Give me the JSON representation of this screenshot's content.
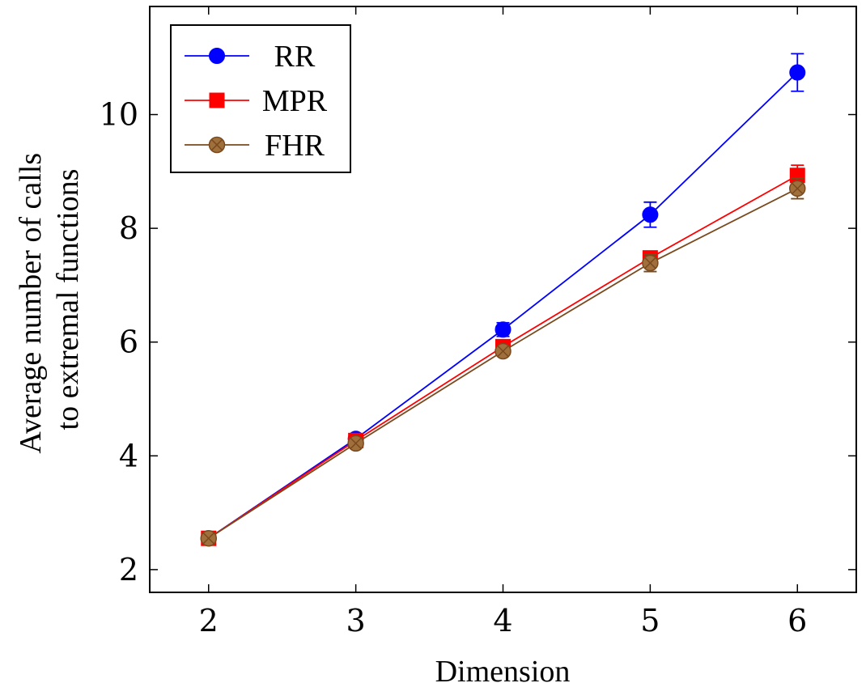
{
  "chart_data": {
    "type": "line",
    "x": [
      2,
      3,
      4,
      5,
      6
    ],
    "xlabel": "Dimension",
    "ylabel": [
      "Average number of calls",
      "to extremal functions"
    ],
    "xlim": [
      1.6,
      6.4
    ],
    "ylim": [
      1.6,
      11.9
    ],
    "xticks": [
      2,
      3,
      4,
      5,
      6
    ],
    "yticks": [
      2,
      4,
      6,
      8,
      10
    ],
    "grid": false,
    "legend_position": "top-left",
    "series": [
      {
        "name": "RR",
        "color": "#0000ff",
        "marker": "circle",
        "values": [
          2.55,
          4.3,
          6.22,
          8.24,
          10.74
        ],
        "errors": [
          0.03,
          0.04,
          0.12,
          0.22,
          0.33
        ]
      },
      {
        "name": "MPR",
        "color": "#ff0000",
        "marker": "square",
        "values": [
          2.55,
          4.27,
          5.92,
          7.48,
          8.93
        ],
        "errors": [
          0.03,
          0.04,
          0.07,
          0.1,
          0.18
        ]
      },
      {
        "name": "FHR",
        "color": "#7a4a1e",
        "fill": "#a0703c",
        "marker": "otimes",
        "values": [
          2.55,
          4.22,
          5.84,
          7.39,
          8.7
        ],
        "errors": [
          0.03,
          0.04,
          0.07,
          0.15,
          0.18
        ]
      }
    ]
  }
}
